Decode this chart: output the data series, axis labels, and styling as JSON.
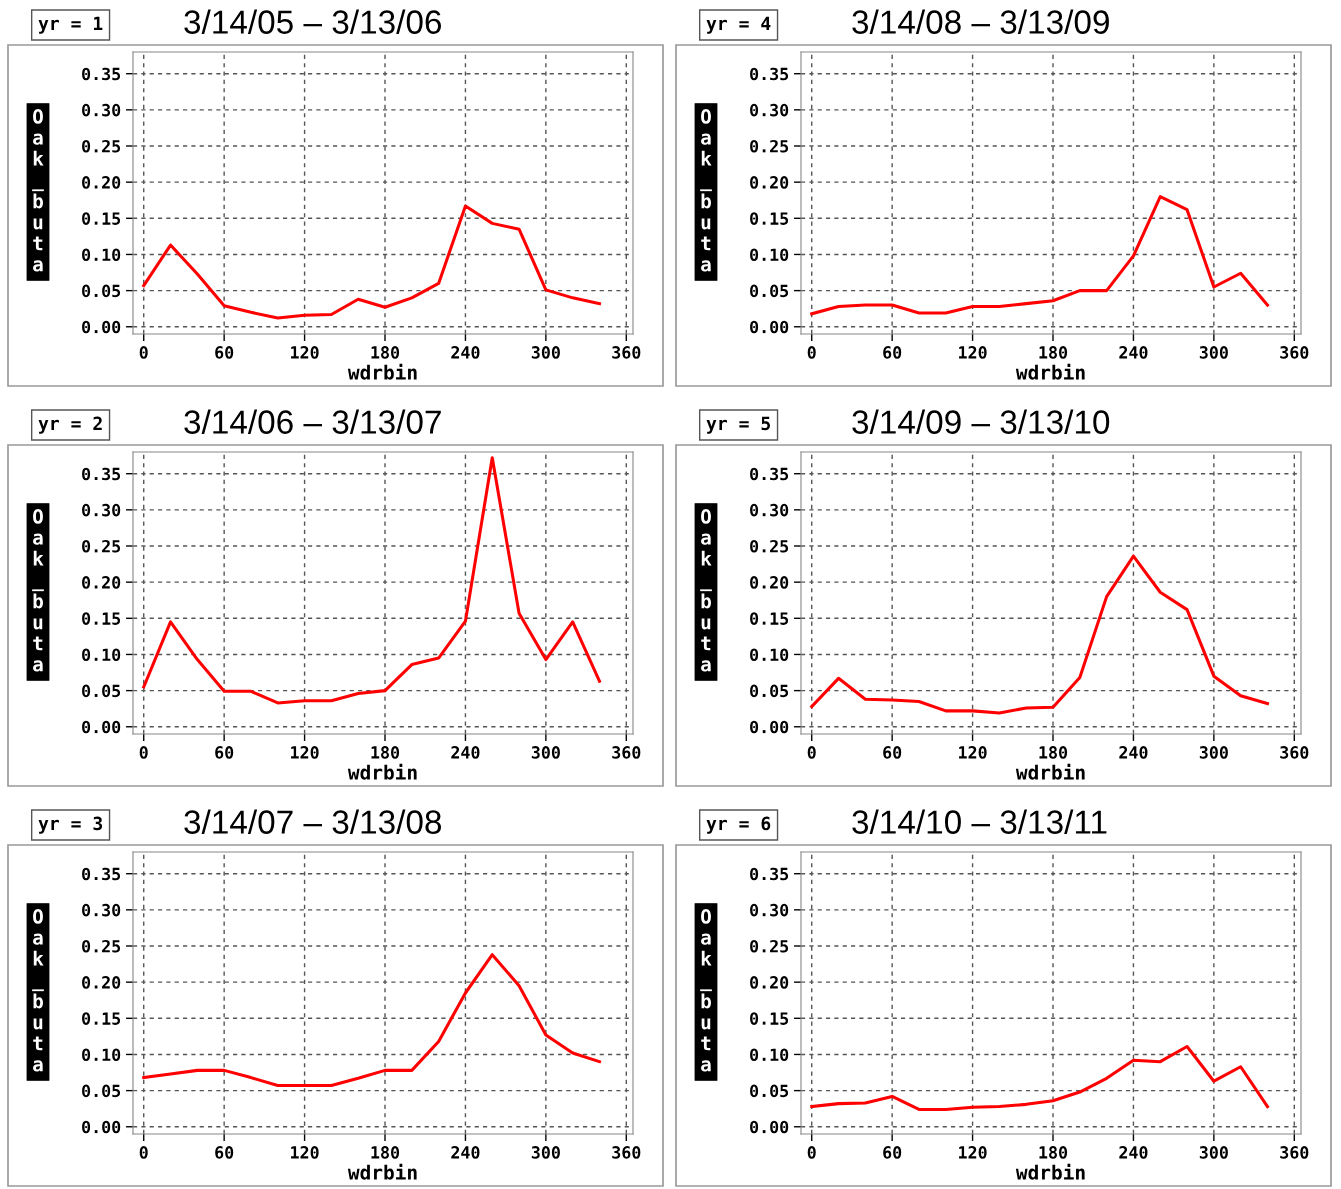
{
  "chart_data": [
    {
      "type": "line",
      "title": "3/14/05 – 3/13/06",
      "subtitle": "yr = 1",
      "xlabel": "wdrbin",
      "ylabel": "Oak_buta",
      "x": [
        0,
        20,
        40,
        60,
        80,
        100,
        120,
        140,
        160,
        180,
        200,
        220,
        240,
        260,
        280,
        300,
        320,
        340
      ],
      "series": [
        {
          "color": "#ff0000",
          "values": [
            0.057,
            0.113,
            0.073,
            0.029,
            0.02,
            0.012,
            0.016,
            0.017,
            0.038,
            0.027,
            0.04,
            0.06,
            0.167,
            0.143,
            0.135,
            0.051,
            0.04,
            0.032
          ]
        }
      ],
      "xlim": [
        -8,
        365
      ],
      "ylim": [
        -0.01,
        0.38
      ],
      "xticks": [
        0,
        60,
        120,
        180,
        240,
        300,
        360
      ],
      "yticks": [
        {
          "value": 0,
          "label": "0.00"
        },
        {
          "value": 0.05,
          "label": "0.05"
        },
        {
          "value": 0.1,
          "label": "0.10"
        },
        {
          "value": 0.15,
          "label": "0.15"
        },
        {
          "value": 0.2,
          "label": "0.20"
        },
        {
          "value": 0.25,
          "label": "0.25"
        },
        {
          "value": 0.3,
          "label": "0.30"
        },
        {
          "value": 0.35,
          "label": "0.35"
        }
      ],
      "grid": true
    },
    {
      "type": "line",
      "title": "3/14/08 – 3/13/09",
      "subtitle": "yr = 4",
      "xlabel": "wdrbin",
      "ylabel": "Oak_buta",
      "x": [
        0,
        20,
        40,
        60,
        80,
        100,
        120,
        140,
        160,
        180,
        200,
        220,
        240,
        260,
        280,
        300,
        320,
        340
      ],
      "series": [
        {
          "color": "#ff0000",
          "values": [
            0.018,
            0.028,
            0.03,
            0.03,
            0.019,
            0.019,
            0.028,
            0.028,
            0.032,
            0.036,
            0.05,
            0.05,
            0.098,
            0.18,
            0.162,
            0.055,
            0.074,
            0.03
          ]
        }
      ],
      "xlim": [
        -8,
        365
      ],
      "ylim": [
        -0.01,
        0.38
      ],
      "xticks": [
        0,
        60,
        120,
        180,
        240,
        300,
        360
      ],
      "yticks": [
        {
          "value": 0,
          "label": "0.00"
        },
        {
          "value": 0.05,
          "label": "0.05"
        },
        {
          "value": 0.1,
          "label": "0.10"
        },
        {
          "value": 0.15,
          "label": "0.15"
        },
        {
          "value": 0.2,
          "label": "0.20"
        },
        {
          "value": 0.25,
          "label": "0.25"
        },
        {
          "value": 0.3,
          "label": "0.30"
        },
        {
          "value": 0.35,
          "label": "0.35"
        }
      ],
      "grid": true
    },
    {
      "type": "line",
      "title": "3/14/06 – 3/13/07",
      "subtitle": "yr = 2",
      "xlabel": "wdrbin",
      "ylabel": "Oak_buta",
      "x": [
        0,
        20,
        40,
        60,
        80,
        100,
        120,
        140,
        160,
        180,
        200,
        220,
        240,
        260,
        280,
        300,
        320,
        340
      ],
      "series": [
        {
          "color": "#ff0000",
          "values": [
            0.055,
            0.145,
            0.093,
            0.049,
            0.049,
            0.033,
            0.036,
            0.036,
            0.046,
            0.05,
            0.086,
            0.095,
            0.146,
            0.372,
            0.157,
            0.093,
            0.145,
            0.063
          ]
        }
      ],
      "xlim": [
        -8,
        365
      ],
      "ylim": [
        -0.01,
        0.38
      ],
      "xticks": [
        0,
        60,
        120,
        180,
        240,
        300,
        360
      ],
      "yticks": [
        {
          "value": 0,
          "label": "0.00"
        },
        {
          "value": 0.05,
          "label": "0.05"
        },
        {
          "value": 0.1,
          "label": "0.10"
        },
        {
          "value": 0.15,
          "label": "0.15"
        },
        {
          "value": 0.2,
          "label": "0.20"
        },
        {
          "value": 0.25,
          "label": "0.25"
        },
        {
          "value": 0.3,
          "label": "0.30"
        },
        {
          "value": 0.35,
          "label": "0.35"
        }
      ],
      "grid": true
    },
    {
      "type": "line",
      "title": "3/14/09 – 3/13/10",
      "subtitle": "yr = 5",
      "xlabel": "wdrbin",
      "ylabel": "Oak_buta",
      "x": [
        0,
        20,
        40,
        60,
        80,
        100,
        120,
        140,
        160,
        180,
        200,
        220,
        240,
        260,
        280,
        300,
        320,
        340
      ],
      "series": [
        {
          "color": "#ff0000",
          "values": [
            0.028,
            0.067,
            0.038,
            0.037,
            0.035,
            0.022,
            0.022,
            0.019,
            0.026,
            0.027,
            0.068,
            0.18,
            0.236,
            0.186,
            0.162,
            0.07,
            0.043,
            0.032
          ]
        }
      ],
      "xlim": [
        -8,
        365
      ],
      "ylim": [
        -0.01,
        0.38
      ],
      "xticks": [
        0,
        60,
        120,
        180,
        240,
        300,
        360
      ],
      "yticks": [
        {
          "value": 0,
          "label": "0.00"
        },
        {
          "value": 0.05,
          "label": "0.05"
        },
        {
          "value": 0.1,
          "label": "0.10"
        },
        {
          "value": 0.15,
          "label": "0.15"
        },
        {
          "value": 0.2,
          "label": "0.20"
        },
        {
          "value": 0.25,
          "label": "0.25"
        },
        {
          "value": 0.3,
          "label": "0.30"
        },
        {
          "value": 0.35,
          "label": "0.35"
        }
      ],
      "grid": true
    },
    {
      "type": "line",
      "title": "3/14/07 – 3/13/08",
      "subtitle": "yr = 3",
      "xlabel": "wdrbin",
      "ylabel": "Oak_buta",
      "x": [
        0,
        20,
        40,
        60,
        80,
        100,
        120,
        140,
        160,
        180,
        200,
        220,
        240,
        260,
        280,
        300,
        320,
        340
      ],
      "series": [
        {
          "color": "#ff0000",
          "values": [
            0.068,
            0.073,
            0.078,
            0.078,
            0.068,
            0.057,
            0.057,
            0.057,
            0.067,
            0.078,
            0.078,
            0.118,
            0.185,
            0.238,
            0.195,
            0.127,
            0.102,
            0.09
          ]
        }
      ],
      "xlim": [
        -8,
        365
      ],
      "ylim": [
        -0.01,
        0.38
      ],
      "xticks": [
        0,
        60,
        120,
        180,
        240,
        300,
        360
      ],
      "yticks": [
        {
          "value": 0,
          "label": "0.00"
        },
        {
          "value": 0.05,
          "label": "0.05"
        },
        {
          "value": 0.1,
          "label": "0.10"
        },
        {
          "value": 0.15,
          "label": "0.15"
        },
        {
          "value": 0.2,
          "label": "0.20"
        },
        {
          "value": 0.25,
          "label": "0.25"
        },
        {
          "value": 0.3,
          "label": "0.30"
        },
        {
          "value": 0.35,
          "label": "0.35"
        }
      ],
      "grid": true
    },
    {
      "type": "line",
      "title": "3/14/10 – 3/13/11",
      "subtitle": "yr = 6",
      "xlabel": "wdrbin",
      "ylabel": "Oak_buta",
      "x": [
        0,
        20,
        40,
        60,
        80,
        100,
        120,
        140,
        160,
        180,
        200,
        220,
        240,
        260,
        280,
        300,
        320,
        340
      ],
      "series": [
        {
          "color": "#ff0000",
          "values": [
            0.028,
            0.032,
            0.033,
            0.042,
            0.024,
            0.024,
            0.027,
            0.028,
            0.031,
            0.036,
            0.048,
            0.067,
            0.092,
            0.09,
            0.111,
            0.063,
            0.083,
            0.028
          ]
        }
      ],
      "xlim": [
        -8,
        365
      ],
      "ylim": [
        -0.01,
        0.38
      ],
      "xticks": [
        0,
        60,
        120,
        180,
        240,
        300,
        360
      ],
      "yticks": [
        {
          "value": 0,
          "label": "0.00"
        },
        {
          "value": 0.05,
          "label": "0.05"
        },
        {
          "value": 0.1,
          "label": "0.10"
        },
        {
          "value": 0.15,
          "label": "0.15"
        },
        {
          "value": 0.2,
          "label": "0.20"
        },
        {
          "value": 0.25,
          "label": "0.25"
        },
        {
          "value": 0.3,
          "label": "0.30"
        },
        {
          "value": 0.35,
          "label": "0.35"
        }
      ],
      "grid": true
    }
  ]
}
